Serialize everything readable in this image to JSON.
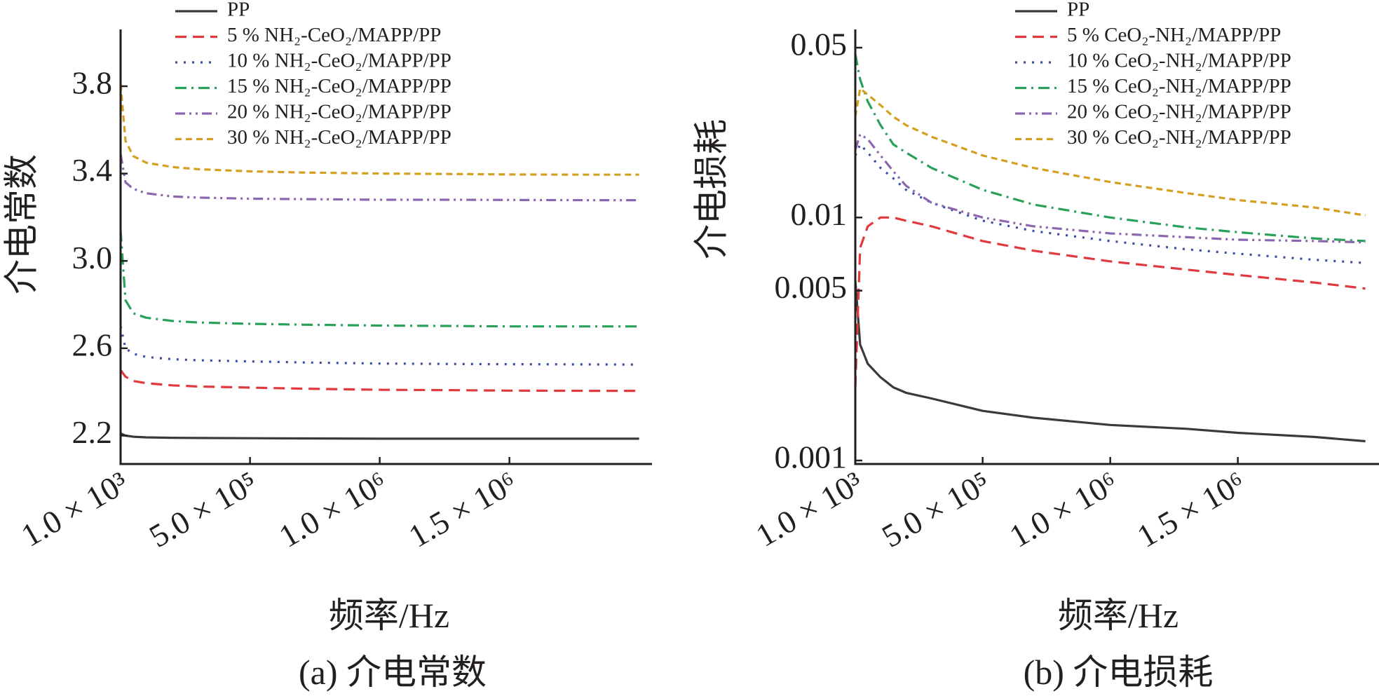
{
  "charts": [
    {
      "caption": "(a) 介电常数",
      "chart_data": {
        "type": "line",
        "ylabel": "介电常数",
        "xlabel": "频率/Hz",
        "x_ticks": [
          "1.0 × 10³",
          "5.0 × 10⁵",
          "1.0 × 10⁶",
          "1.5 × 10⁶"
        ],
        "x_tick_values": [
          1000,
          500000,
          1000000,
          1500000
        ],
        "y_ticks": [
          "2.2",
          "2.6",
          "3.0",
          "3.4",
          "3.8"
        ],
        "y_tick_values": [
          2.2,
          2.6,
          3.0,
          3.4,
          3.8
        ],
        "xlim": [
          1000,
          2000000
        ],
        "ylim": [
          2.07,
          4.06
        ],
        "y_scale": "linear",
        "grid": false,
        "legend_position": "top-right",
        "x": [
          1000,
          20000,
          50000,
          100000,
          200000,
          300000,
          500000,
          700000,
          1000000,
          1300000,
          1500000,
          1800000,
          2000000
        ],
        "series": [
          {
            "name": "PP",
            "style": "solid",
            "color": "#3a3a3a",
            "values": [
              2.21,
              2.2,
              2.195,
              2.192,
              2.19,
              2.189,
              2.188,
              2.187,
              2.186,
              2.186,
              2.186,
              2.186,
              2.186
            ]
          },
          {
            "name": "5 % NH₂-CeO₂/MAPP/PP",
            "style": "dashed",
            "color": "#e0393e",
            "values": [
              2.5,
              2.47,
              2.45,
              2.44,
              2.43,
              2.425,
              2.42,
              2.415,
              2.41,
              2.408,
              2.406,
              2.405,
              2.405
            ]
          },
          {
            "name": "10 % NH₂-CeO₂/MAPP/PP",
            "style": "dotted",
            "color": "#3b4fa0",
            "values": [
              2.7,
              2.6,
              2.575,
              2.56,
              2.55,
              2.545,
              2.54,
              2.535,
              2.53,
              2.528,
              2.527,
              2.526,
              2.525
            ]
          },
          {
            "name": "15 % NH₂-CeO₂/MAPP/PP",
            "style": "dash-dot",
            "color": "#2aa15a",
            "values": [
              3.14,
              2.82,
              2.76,
              2.74,
              2.725,
              2.718,
              2.712,
              2.708,
              2.704,
              2.702,
              2.7,
              2.7,
              2.7
            ]
          },
          {
            "name": "20 % NH₂-CeO₂/MAPP/PP",
            "style": "dash-dot-dot",
            "color": "#8c67b0",
            "values": [
              3.49,
              3.36,
              3.33,
              3.31,
              3.295,
              3.29,
              3.285,
              3.283,
              3.28,
              3.28,
              3.279,
              3.278,
              3.278
            ]
          },
          {
            "name": "30 % NH₂-CeO₂/MAPP/PP",
            "style": "short-dashed",
            "color": "#d4a020",
            "values": [
              3.81,
              3.55,
              3.48,
              3.45,
              3.43,
              3.42,
              3.41,
              3.405,
              3.4,
              3.398,
              3.396,
              3.395,
              3.395
            ]
          }
        ]
      }
    },
    {
      "caption": "(b) 介电损耗",
      "chart_data": {
        "type": "line",
        "ylabel": "介电损耗",
        "xlabel": "频率/Hz",
        "x_ticks": [
          "1.0 × 10³",
          "5.0 × 10⁵",
          "1.0 × 10⁶",
          "1.5 × 10⁶"
        ],
        "x_tick_values": [
          1000,
          500000,
          1000000,
          1500000
        ],
        "y_ticks": [
          "0.001",
          "0.005",
          "0.01",
          "0.05"
        ],
        "y_tick_values": [
          0.001,
          0.005,
          0.01,
          0.05
        ],
        "xlim": [
          1000,
          2000000
        ],
        "y_scale": "log",
        "grid": false,
        "legend_position": "top-right",
        "x": [
          1000,
          20000,
          50000,
          100000,
          150000,
          200000,
          300000,
          500000,
          700000,
          1000000,
          1300000,
          1500000,
          1800000,
          2000000
        ],
        "series": [
          {
            "name": "PP",
            "style": "solid",
            "color": "#3a3a3a",
            "values": [
              0.0055,
              0.003,
              0.0025,
              0.0022,
              0.002,
              0.0019,
              0.0018,
              0.0016,
              0.0015,
              0.0014,
              0.00135,
              0.0013,
              0.00125,
              0.0012
            ]
          },
          {
            "name": "5 % CeO₂-NH₂/MAPP/PP",
            "style": "dashed",
            "color": "#e0393e",
            "values": [
              0.002,
              0.0075,
              0.0092,
              0.01,
              0.01,
              0.0097,
              0.0092,
              0.008,
              0.0073,
              0.0066,
              0.0061,
              0.0058,
              0.0054,
              0.0051
            ]
          },
          {
            "name": "10 % CeO₂-NH₂/MAPP/PP",
            "style": "dotted",
            "color": "#3b4fa0",
            "values": [
              0.018,
              0.02,
              0.0185,
              0.016,
              0.0145,
              0.013,
              0.0115,
              0.0097,
              0.0088,
              0.008,
              0.0074,
              0.0071,
              0.0067,
              0.0065
            ]
          },
          {
            "name": "15 % CeO₂-NH₂/MAPP/PP",
            "style": "dash-dot",
            "color": "#2aa15a",
            "values": [
              0.047,
              0.037,
              0.03,
              0.024,
              0.02,
              0.0185,
              0.016,
              0.013,
              0.0113,
              0.01,
              0.0091,
              0.0087,
              0.0082,
              0.008
            ]
          },
          {
            "name": "20 % CeO₂-NH₂/MAPP/PP",
            "style": "dash-dot-dot",
            "color": "#8c67b0",
            "values": [
              0.019,
              0.022,
              0.021,
              0.018,
              0.0155,
              0.0135,
              0.0115,
              0.01,
              0.0092,
              0.0086,
              0.0083,
              0.0081,
              0.008,
              0.0079
            ]
          },
          {
            "name": "30 % CeO₂-NH₂/MAPP/PP",
            "style": "short-dashed",
            "color": "#d4a020",
            "values": [
              0.026,
              0.034,
              0.032,
              0.029,
              0.026,
              0.024,
              0.0215,
              0.018,
              0.016,
              0.014,
              0.0126,
              0.0118,
              0.011,
              0.0102
            ]
          }
        ]
      }
    }
  ]
}
